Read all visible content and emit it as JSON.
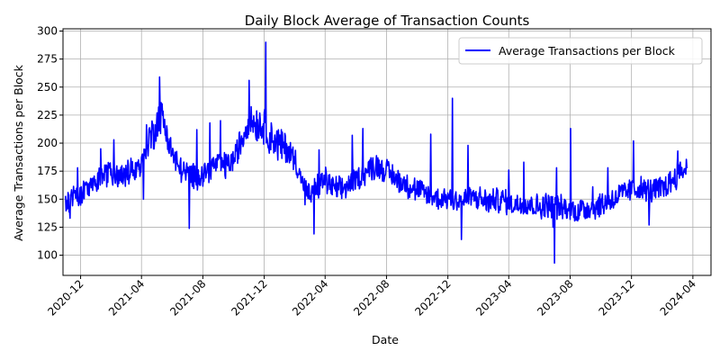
{
  "chart_data": {
    "type": "line",
    "title": "Daily Block Average of Transaction Counts",
    "xlabel": "Date",
    "ylabel": "Average Transactions per Block",
    "xlim": [
      "2020-10-27",
      "2024-05-07"
    ],
    "ylim": [
      82,
      302
    ],
    "x_ticks": [
      "2020-12",
      "2021-04",
      "2021-08",
      "2021-12",
      "2022-04",
      "2022-08",
      "2022-12",
      "2023-04",
      "2023-08",
      "2023-12",
      "2024-04"
    ],
    "y_ticks": [
      100,
      125,
      150,
      175,
      200,
      225,
      250,
      275,
      300
    ],
    "grid": true,
    "legend_position": "top-right",
    "color": "#0000ff",
    "series": [
      {
        "name": "Average Transactions per Block",
        "x_start": "2020-11-01",
        "x_end": "2024-03-20",
        "anchors": [
          [
            "2020-11-01",
            148
          ],
          [
            "2020-11-15",
            152
          ],
          [
            "2020-12-01",
            155
          ],
          [
            "2020-12-15",
            160
          ],
          [
            "2021-01-01",
            165
          ],
          [
            "2021-01-15",
            172
          ],
          [
            "2021-02-01",
            175
          ],
          [
            "2021-02-15",
            170
          ],
          [
            "2021-03-01",
            172
          ],
          [
            "2021-03-15",
            178
          ],
          [
            "2021-04-01",
            180
          ],
          [
            "2021-04-10",
            200
          ],
          [
            "2021-04-25",
            210
          ],
          [
            "2021-05-08",
            225
          ],
          [
            "2021-05-20",
            212
          ],
          [
            "2021-06-01",
            190
          ],
          [
            "2021-06-15",
            178
          ],
          [
            "2021-07-01",
            172
          ],
          [
            "2021-07-15",
            170
          ],
          [
            "2021-08-01",
            172
          ],
          [
            "2021-08-15",
            178
          ],
          [
            "2021-09-01",
            182
          ],
          [
            "2021-09-15",
            180
          ],
          [
            "2021-10-01",
            185
          ],
          [
            "2021-10-15",
            200
          ],
          [
            "2021-11-01",
            222
          ],
          [
            "2021-11-15",
            218
          ],
          [
            "2021-12-01",
            215
          ],
          [
            "2021-12-15",
            205
          ],
          [
            "2022-01-01",
            198
          ],
          [
            "2022-01-15",
            195
          ],
          [
            "2022-02-01",
            185
          ],
          [
            "2022-02-15",
            165
          ],
          [
            "2022-03-01",
            152
          ],
          [
            "2022-03-15",
            160
          ],
          [
            "2022-04-01",
            168
          ],
          [
            "2022-04-15",
            160
          ],
          [
            "2022-05-01",
            158
          ],
          [
            "2022-05-15",
            162
          ],
          [
            "2022-06-01",
            168
          ],
          [
            "2022-06-15",
            172
          ],
          [
            "2022-07-01",
            178
          ],
          [
            "2022-07-15",
            180
          ],
          [
            "2022-08-01",
            175
          ],
          [
            "2022-08-15",
            170
          ],
          [
            "2022-09-01",
            165
          ],
          [
            "2022-09-15",
            162
          ],
          [
            "2022-10-01",
            158
          ],
          [
            "2022-10-15",
            155
          ],
          [
            "2022-11-01",
            152
          ],
          [
            "2022-11-15",
            150
          ],
          [
            "2022-12-01",
            152
          ],
          [
            "2022-12-15",
            150
          ],
          [
            "2023-01-01",
            148
          ],
          [
            "2023-01-15",
            152
          ],
          [
            "2023-02-01",
            150
          ],
          [
            "2023-02-15",
            148
          ],
          [
            "2023-03-01",
            148
          ],
          [
            "2023-03-15",
            150
          ],
          [
            "2023-04-01",
            147
          ],
          [
            "2023-04-15",
            145
          ],
          [
            "2023-05-01",
            148
          ],
          [
            "2023-05-15",
            145
          ],
          [
            "2023-06-01",
            143
          ],
          [
            "2023-06-15",
            145
          ],
          [
            "2023-07-01",
            145
          ],
          [
            "2023-07-15",
            142
          ],
          [
            "2023-08-01",
            140
          ],
          [
            "2023-08-15",
            140
          ],
          [
            "2023-09-01",
            142
          ],
          [
            "2023-09-15",
            143
          ],
          [
            "2023-10-01",
            145
          ],
          [
            "2023-10-15",
            148
          ],
          [
            "2023-11-01",
            152
          ],
          [
            "2023-11-15",
            155
          ],
          [
            "2023-12-01",
            158
          ],
          [
            "2023-12-15",
            160
          ],
          [
            "2024-01-01",
            157
          ],
          [
            "2024-01-15",
            158
          ],
          [
            "2024-02-01",
            160
          ],
          [
            "2024-02-15",
            165
          ],
          [
            "2024-03-01",
            172
          ],
          [
            "2024-03-20",
            178
          ]
        ],
        "spikes": [
          [
            "2020-11-10",
            133
          ],
          [
            "2020-11-25",
            178
          ],
          [
            "2021-01-10",
            195
          ],
          [
            "2021-02-05",
            203
          ],
          [
            "2021-04-05",
            150
          ],
          [
            "2021-05-07",
            259
          ],
          [
            "2021-05-12",
            235
          ],
          [
            "2021-07-05",
            124
          ],
          [
            "2021-07-20",
            212
          ],
          [
            "2021-08-15",
            218
          ],
          [
            "2021-09-05",
            220
          ],
          [
            "2021-11-01",
            256
          ],
          [
            "2021-12-04",
            290
          ],
          [
            "2021-12-06",
            205
          ],
          [
            "2022-02-20",
            145
          ],
          [
            "2022-03-10",
            119
          ],
          [
            "2022-03-20",
            194
          ],
          [
            "2022-05-25",
            207
          ],
          [
            "2022-06-15",
            213
          ],
          [
            "2022-10-28",
            208
          ],
          [
            "2022-12-10",
            240
          ],
          [
            "2022-12-28",
            114
          ],
          [
            "2023-01-10",
            198
          ],
          [
            "2023-04-01",
            176
          ],
          [
            "2023-05-01",
            183
          ],
          [
            "2023-06-28",
            125
          ],
          [
            "2023-07-01",
            93
          ],
          [
            "2023-07-05",
            178
          ],
          [
            "2023-08-02",
            213
          ],
          [
            "2023-09-15",
            161
          ],
          [
            "2023-10-15",
            178
          ],
          [
            "2023-12-05",
            202
          ],
          [
            "2024-01-05",
            127
          ],
          [
            "2024-03-02",
            193
          ]
        ]
      }
    ]
  }
}
